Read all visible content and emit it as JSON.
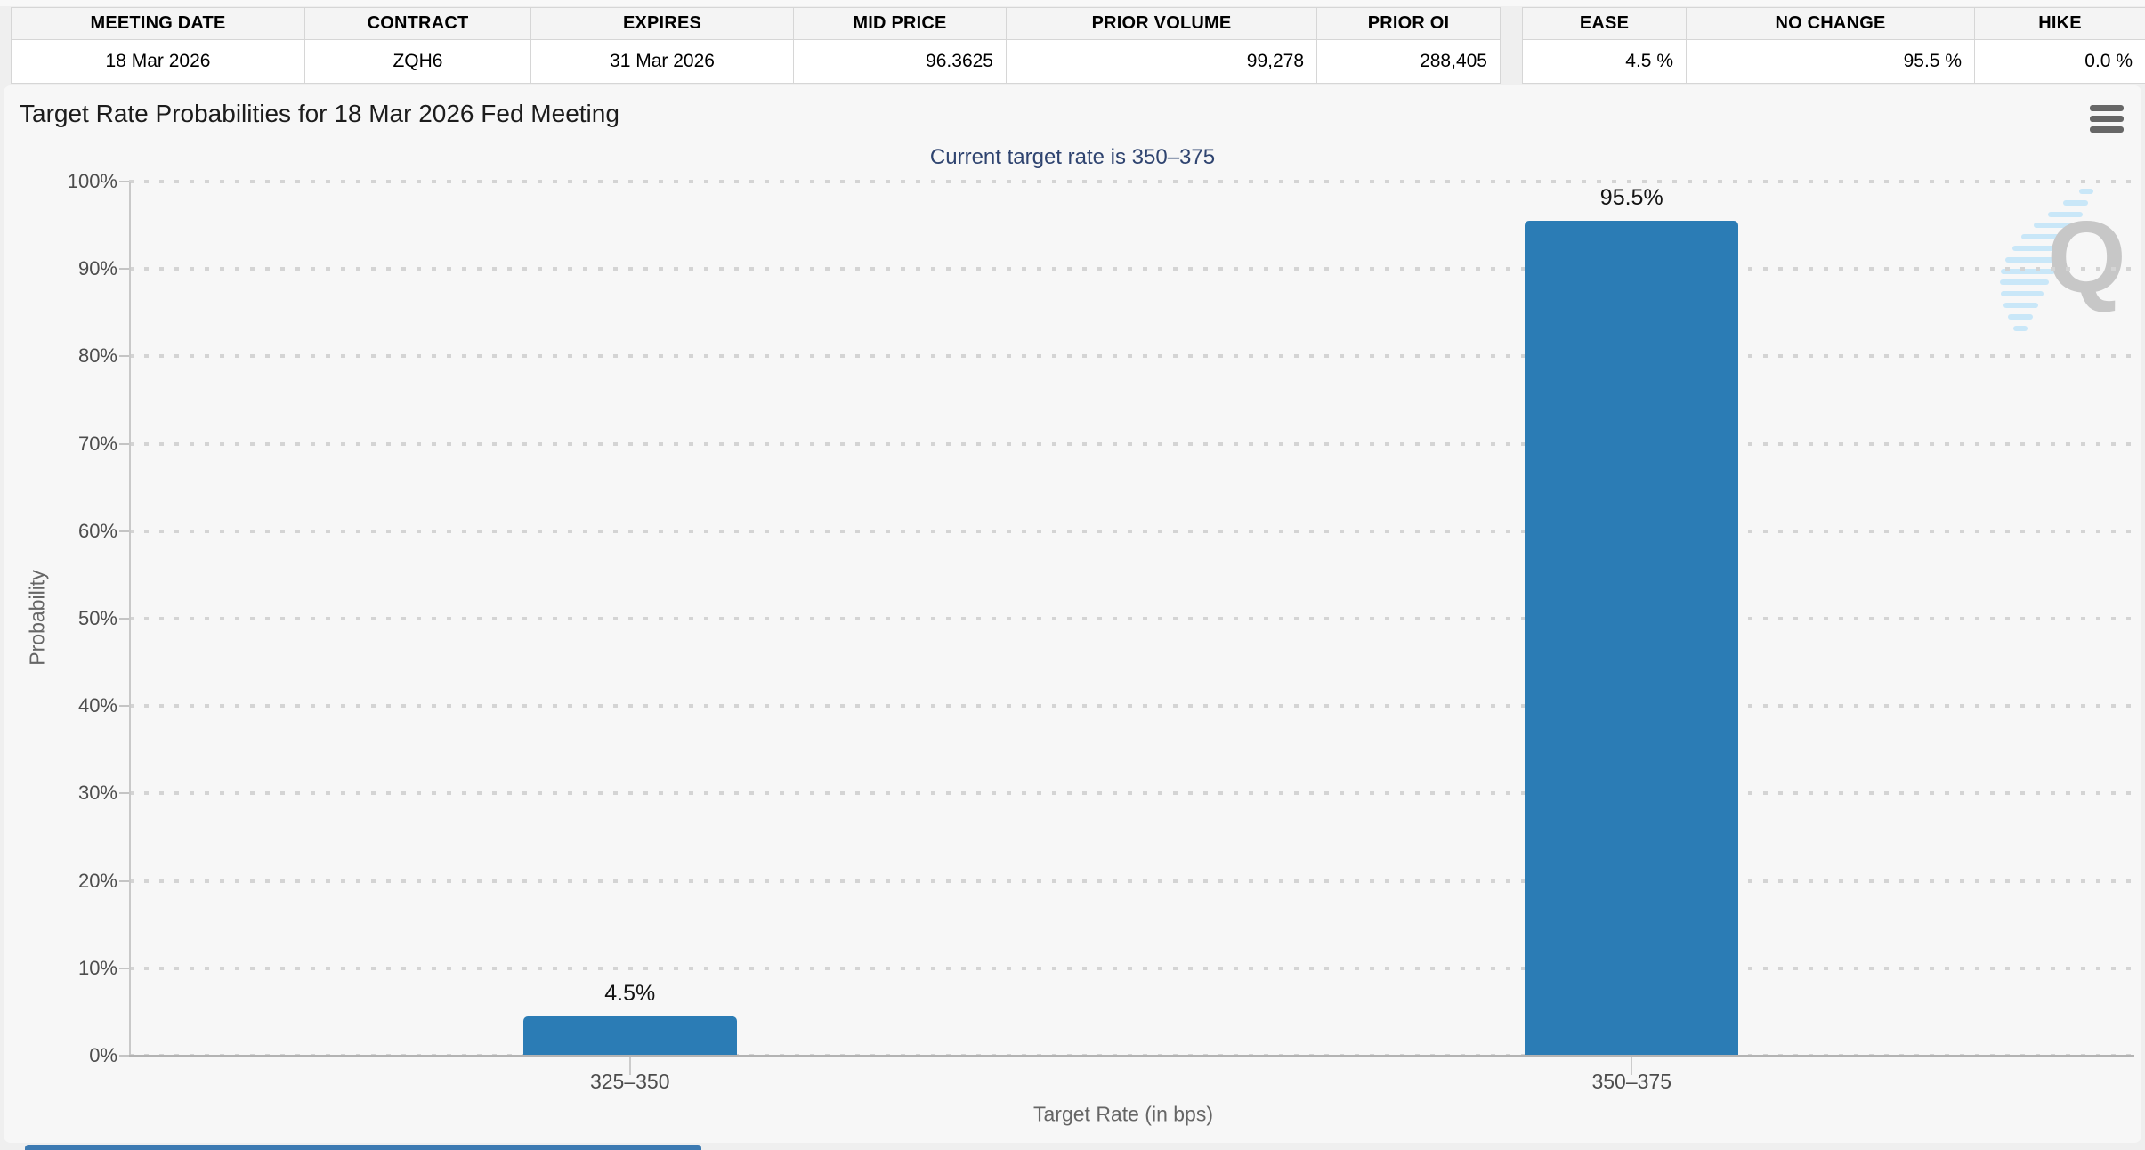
{
  "contract_table": {
    "headers": [
      "MEETING DATE",
      "CONTRACT",
      "EXPIRES",
      "MID PRICE",
      "PRIOR VOLUME",
      "PRIOR OI"
    ],
    "row": [
      "18 Mar 2026",
      "ZQH6",
      "31 Mar 2026",
      "96.3625",
      "99,278",
      "288,405"
    ]
  },
  "action_table": {
    "headers": [
      "EASE",
      "NO CHANGE",
      "HIKE"
    ],
    "row": [
      "4.5 %",
      "95.5 %",
      "0.0 %"
    ]
  },
  "chart_data": {
    "type": "bar",
    "title": "Target Rate Probabilities for 18 Mar 2026 Fed Meeting",
    "subtitle": "Current target rate is 350–375",
    "categories": [
      "325–350",
      "350–375"
    ],
    "values": [
      4.5,
      95.5
    ],
    "data_labels": [
      "4.5%",
      "95.5%"
    ],
    "xlabel": "Target Rate (in bps)",
    "ylabel": "Probability",
    "ylim": [
      0,
      100
    ],
    "ytick_interval": 10,
    "ytick_labels": [
      "0%",
      "10%",
      "20%",
      "30%",
      "40%",
      "50%",
      "60%",
      "70%",
      "80%",
      "90%",
      "100%"
    ],
    "grid": "horizontal-dotted",
    "legend": "none",
    "bar_color": "#2b7cb5"
  },
  "icons": {
    "menu": "hamburger-menu",
    "watermark_letter": "Q"
  },
  "colors": {
    "bar": "#2b7cb5",
    "subtitle": "#2f4470",
    "panel_bg": "#f7f7f7",
    "page_bg": "#efefef"
  }
}
